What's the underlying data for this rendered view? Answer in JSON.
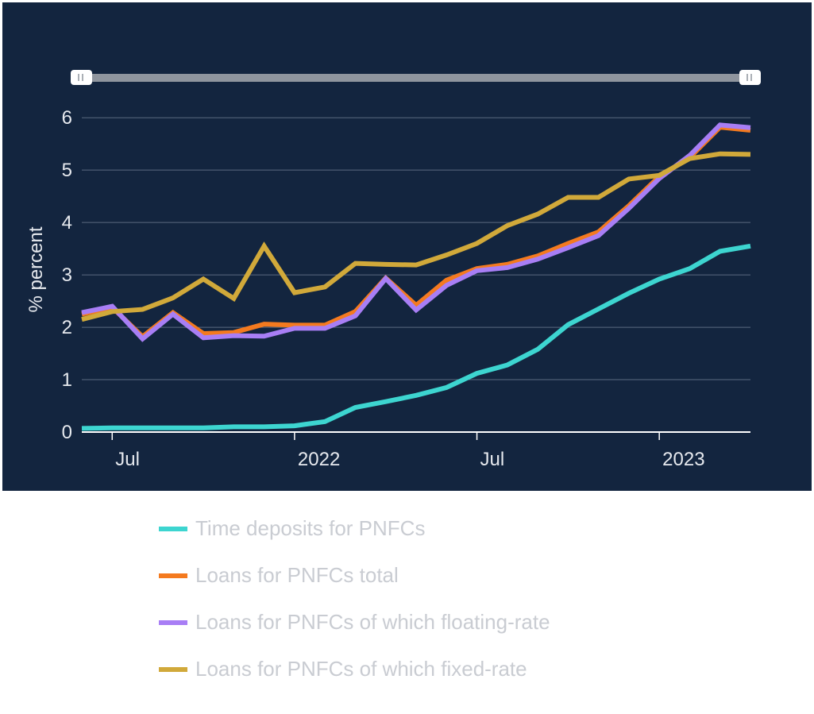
{
  "chart_data": {
    "type": "line",
    "ylabel": "% percent",
    "ylim": [
      0,
      6.2
    ],
    "yticks": [
      0,
      1,
      2,
      3,
      4,
      5,
      6
    ],
    "x_tick_labels": [
      "Jul",
      "2022",
      "Jul",
      "2023"
    ],
    "x": [
      "2021-06",
      "2021-07",
      "2021-08",
      "2021-09",
      "2021-10",
      "2021-11",
      "2021-12",
      "2022-01",
      "2022-02",
      "2022-03",
      "2022-04",
      "2022-05",
      "2022-06",
      "2022-07",
      "2022-08",
      "2022-09",
      "2022-10",
      "2022-11",
      "2022-12",
      "2023-01",
      "2023-02",
      "2023-03",
      "2023-04"
    ],
    "grid": true,
    "legend_position": "bottom",
    "range_selector": true,
    "series": [
      {
        "name": "Time deposits for PNFCs",
        "color": "#3dd5d0",
        "values": [
          0.07,
          0.08,
          0.08,
          0.08,
          0.08,
          0.1,
          0.1,
          0.12,
          0.2,
          0.47,
          0.58,
          0.7,
          0.85,
          1.12,
          1.28,
          1.58,
          2.05,
          2.35,
          2.65,
          2.92,
          3.12,
          3.45,
          3.55
        ]
      },
      {
        "name": "Loans for PNFCs total",
        "color": "#f47a1f",
        "values": [
          2.25,
          2.38,
          1.82,
          2.28,
          1.88,
          1.9,
          2.06,
          2.04,
          2.04,
          2.3,
          2.94,
          2.42,
          2.9,
          3.12,
          3.2,
          3.36,
          3.6,
          3.82,
          4.32,
          4.88,
          5.24,
          5.82,
          5.76
        ]
      },
      {
        "name": "Loans for PNFCs of which floating-rate",
        "color": "#a87ef5",
        "values": [
          2.28,
          2.4,
          1.78,
          2.25,
          1.8,
          1.84,
          1.83,
          1.98,
          1.98,
          2.22,
          2.93,
          2.33,
          2.8,
          3.08,
          3.14,
          3.3,
          3.52,
          3.75,
          4.27,
          4.84,
          5.28,
          5.86,
          5.81
        ]
      },
      {
        "name": "Loans for PNFCs of which fixed-rate",
        "color": "#d1a93a",
        "values": [
          2.15,
          2.3,
          2.34,
          2.56,
          2.92,
          2.55,
          3.55,
          2.66,
          2.77,
          3.22,
          3.2,
          3.19,
          3.38,
          3.6,
          3.94,
          4.16,
          4.48,
          4.48,
          4.83,
          4.9,
          5.22,
          5.31,
          5.3
        ]
      }
    ]
  }
}
